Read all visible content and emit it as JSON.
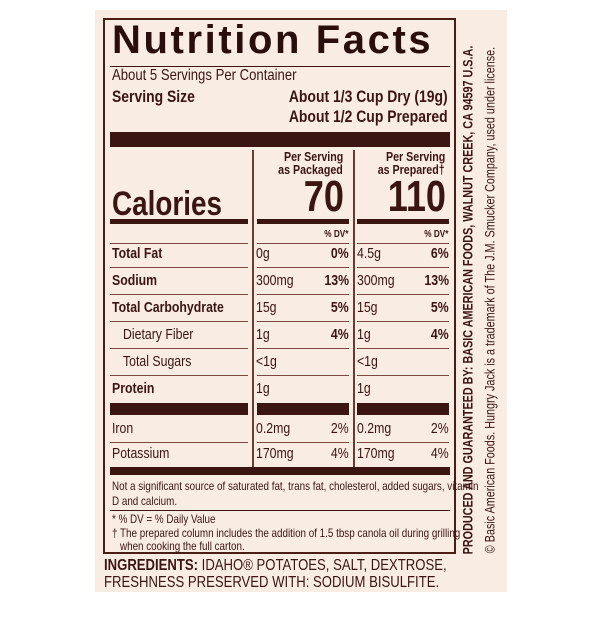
{
  "label": {
    "title": "Nutrition Facts",
    "servings_per_container": "About 5 Servings Per Container",
    "serving_size_label": "Serving Size",
    "serving_size_dry": "About 1/3 Cup Dry (19g)",
    "serving_size_prepared": "About 1/2 Cup Prepared",
    "calories_label": "Calories",
    "columns": [
      {
        "header_line1": "Per Serving",
        "header_line2": "as Packaged",
        "calories": "70",
        "dv_header": "% DV*"
      },
      {
        "header_line1": "Per Serving",
        "header_line2": "as Prepared†",
        "calories": "110",
        "dv_header": "% DV*"
      }
    ],
    "rows": [
      {
        "name": "Total Fat",
        "bold": true,
        "indent": false,
        "packaged": "0g",
        "packaged_dv": "0%",
        "prepared": "4.5g",
        "prepared_dv": "6%"
      },
      {
        "name": "Sodium",
        "bold": true,
        "indent": false,
        "packaged": "300mg",
        "packaged_dv": "13%",
        "prepared": "300mg",
        "prepared_dv": "13%"
      },
      {
        "name": "Total Carbohydrate",
        "bold": true,
        "indent": false,
        "packaged": "15g",
        "packaged_dv": "5%",
        "prepared": "15g",
        "prepared_dv": "5%"
      },
      {
        "name": "Dietary Fiber",
        "bold": false,
        "indent": true,
        "packaged": "1g",
        "packaged_dv": "4%",
        "prepared": "1g",
        "prepared_dv": "4%"
      },
      {
        "name": "Total Sugars",
        "bold": false,
        "indent": true,
        "packaged": "<1g",
        "packaged_dv": "",
        "prepared": "<1g",
        "prepared_dv": ""
      },
      {
        "name": "Protein",
        "bold": true,
        "indent": false,
        "packaged": "1g",
        "packaged_dv": "",
        "prepared": "1g",
        "prepared_dv": ""
      },
      {
        "name": "Iron",
        "bold": false,
        "indent": false,
        "packaged": "0.2mg",
        "packaged_dv": "2%",
        "prepared": "0.2mg",
        "prepared_dv": "2%"
      },
      {
        "name": "Potassium",
        "bold": false,
        "indent": false,
        "packaged": "170mg",
        "packaged_dv": "4%",
        "prepared": "170mg",
        "prepared_dv": "4%"
      }
    ],
    "footnote_not_significant": "Not a significant source of saturated fat, trans fat, cholesterol, added sugars, vitamin",
    "footnote_not_significant_2": "D and calcium.",
    "footnote_dv": "* % DV = % Daily Value",
    "footnote_prepared": "† The prepared column includes the addition of 1.5 tbsp canola oil during grilling",
    "footnote_prepared_2": "when cooking the full carton."
  },
  "ingredients": {
    "label": "INGREDIENTS:",
    "line1": "IDAHO® POTATOES, SALT, DEXTROSE,",
    "line2": "FRESHNESS PRESERVED WITH: SODIUM BISULFITE."
  },
  "side_text": {
    "producer": "PRODUCED AND GUARANTEED BY: BASIC AMERICAN FOODS, WALNUT CREEK, CA 94597 U.S.A.",
    "trademark": "© Basic American Foods. Hungry Jack is a trademark of The J.M. Smucker Company, used under license."
  },
  "colors": {
    "background": "#f9ece3",
    "ink": "#3a1512"
  }
}
